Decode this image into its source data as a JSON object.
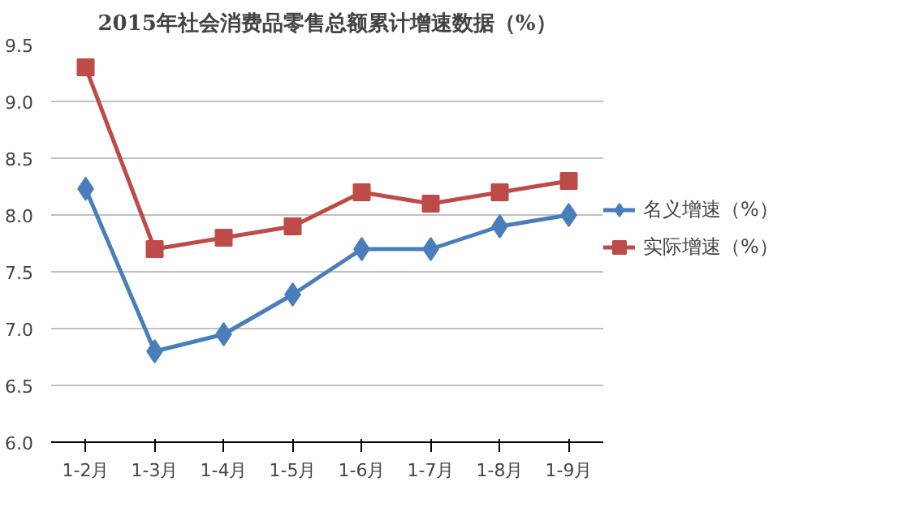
{
  "chart_data": {
    "type": "line",
    "title": "2015年社会消费品零售总额累计增速数据（%）",
    "categories": [
      "1-2月",
      "1-3月",
      "1-4月",
      "1-5月",
      "1-6月",
      "1-7月",
      "1-8月",
      "1-9月"
    ],
    "series": [
      {
        "name": "名义增速（%）",
        "color": "#4a7ebb",
        "marker": "diamond",
        "values": [
          8.23,
          6.8,
          6.95,
          7.3,
          7.7,
          7.7,
          7.9,
          8.0
        ]
      },
      {
        "name": "实际增速（%）",
        "color": "#be4b48",
        "marker": "square",
        "values": [
          9.3,
          7.7,
          7.8,
          7.9,
          8.2,
          8.1,
          8.2,
          8.3
        ]
      }
    ],
    "ylim": [
      6.0,
      9.5
    ],
    "yticks": [
      {
        "value": 6.0,
        "label": "6.0"
      },
      {
        "value": 6.5,
        "label": "6.5"
      },
      {
        "value": 7.0,
        "label": "7.0"
      },
      {
        "value": 7.5,
        "label": "7.5"
      },
      {
        "value": 8.0,
        "label": "8.0"
      },
      {
        "value": 8.5,
        "label": "8.5"
      },
      {
        "value": 9.0,
        "label": "9.0"
      },
      {
        "value": 9.5,
        "label": "9.5"
      }
    ],
    "grid": "y",
    "legend": "right",
    "line_style": "solid"
  }
}
